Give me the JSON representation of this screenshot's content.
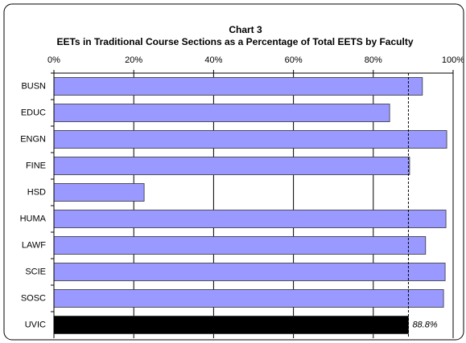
{
  "chart_data": {
    "type": "hbar",
    "title": "Chart 3",
    "subtitle": "EETs in Traditional Course Sections as a Percentage of Total EETS by Faculty",
    "categories": [
      "BUSN",
      "EDUC",
      "ENGN",
      "FINE",
      "HSD",
      "HUMA",
      "LAWF",
      "SCIE",
      "SOSC",
      "UVIC"
    ],
    "values": [
      92.3,
      84.1,
      98.4,
      89.1,
      22.6,
      98.2,
      93.1,
      98.0,
      97.6,
      88.8
    ],
    "value_labels": [
      null,
      null,
      null,
      null,
      null,
      null,
      null,
      null,
      null,
      "88.8%"
    ],
    "colors": [
      "#9999ff",
      "#9999ff",
      "#9999ff",
      "#9999ff",
      "#9999ff",
      "#9999ff",
      "#9999ff",
      "#9999ff",
      "#9999ff",
      "#000000"
    ],
    "xlim": [
      0,
      100
    ],
    "xticks": [
      {
        "value": 0,
        "label": "0%"
      },
      {
        "value": 20,
        "label": "20%"
      },
      {
        "value": 40,
        "label": "40%"
      },
      {
        "value": 60,
        "label": "60%"
      },
      {
        "value": 80,
        "label": "80%"
      },
      {
        "value": 100,
        "label": "100%"
      }
    ],
    "grid": true
  }
}
